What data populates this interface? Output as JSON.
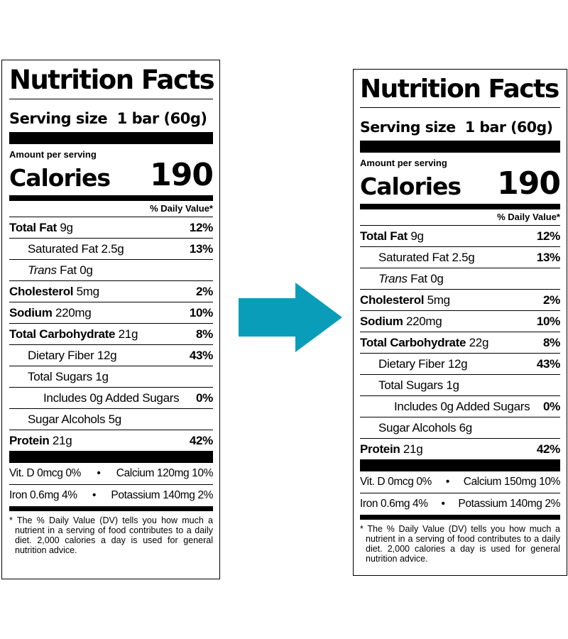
{
  "labels": [
    {
      "title": "Nutrition Facts",
      "serving_label": "Serving size",
      "serving_value": "1 bar (60g)",
      "amount_per_serving": "Amount per serving",
      "calories_label": "Calories",
      "calories_value": "190",
      "dv_header": "% Daily Value*",
      "rows": [
        {
          "name": "Total Fat",
          "amount": "9g",
          "dv": "12%"
        },
        {
          "name": "Saturated Fat",
          "amount": "2.5g",
          "dv": "13%"
        },
        {
          "name": "Trans",
          "amount": "Fat 0g",
          "dv": ""
        },
        {
          "name": "Cholesterol",
          "amount": "5mg",
          "dv": "2%"
        },
        {
          "name": "Sodium",
          "amount": "220mg",
          "dv": "10%"
        },
        {
          "name": "Total Carbohydrate",
          "amount": "21g",
          "dv": "8%"
        },
        {
          "name": "Dietary Fiber",
          "amount": "12g",
          "dv": "43%"
        },
        {
          "name": "Total Sugars",
          "amount": "1g",
          "dv": ""
        },
        {
          "name": "Includes 0g Added Sugars",
          "amount": "",
          "dv": "0%"
        },
        {
          "name": "Sugar Alcohols",
          "amount": "5g",
          "dv": ""
        },
        {
          "name": "Protein",
          "amount": "21g",
          "dv": "42%"
        }
      ],
      "vitamins": [
        {
          "left": "Vit. D 0mcg 0%",
          "right": "Calcium 120mg 10%"
        },
        {
          "left": "Iron 0.6mg 4%",
          "right": "Potassium 140mg 2%"
        }
      ],
      "bullet": "•",
      "footnote": "* The % Daily Value (DV) tells you how much a nutrient in a serving of food contributes to a daily diet. 2,000 calories a day is used for general nutrition advice."
    },
    {
      "title": "Nutrition Facts",
      "serving_label": "Serving size",
      "serving_value": "1 bar (60g)",
      "amount_per_serving": "Amount per serving",
      "calories_label": "Calories",
      "calories_value": "190",
      "dv_header": "% Daily Value*",
      "rows": [
        {
          "name": "Total Fat",
          "amount": "9g",
          "dv": "12%"
        },
        {
          "name": "Saturated Fat",
          "amount": "2.5g",
          "dv": "13%"
        },
        {
          "name": "Trans",
          "amount": "Fat 0g",
          "dv": ""
        },
        {
          "name": "Cholesterol",
          "amount": "5mg",
          "dv": "2%"
        },
        {
          "name": "Sodium",
          "amount": "220mg",
          "dv": "10%"
        },
        {
          "name": "Total Carbohydrate",
          "amount": "22g",
          "dv": "8%"
        },
        {
          "name": "Dietary Fiber",
          "amount": "12g",
          "dv": "43%"
        },
        {
          "name": "Total Sugars",
          "amount": "1g",
          "dv": ""
        },
        {
          "name": "Includes 0g Added Sugars",
          "amount": "",
          "dv": "0%"
        },
        {
          "name": "Sugar Alcohols",
          "amount": "6g",
          "dv": ""
        },
        {
          "name": "Protein",
          "amount": "21g",
          "dv": "42%"
        }
      ],
      "vitamins": [
        {
          "left": "Vit. D 0mcg 0%",
          "right": "Calcium 150mg 10%"
        },
        {
          "left": "Iron 0.6mg 4%",
          "right": "Potassium 140mg 2%"
        }
      ],
      "bullet": "•",
      "footnote": "* The % Daily Value (DV) tells you how much a nutrient in a serving of food contributes to a daily diet. 2,000 calories a day is used for general nutrition advice."
    }
  ],
  "arrow": {
    "icon": "right-arrow-icon",
    "color": "#0a9dba"
  }
}
